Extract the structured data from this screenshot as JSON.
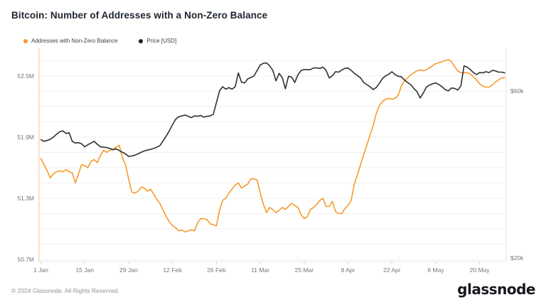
{
  "page": {
    "title": "Bitcoin: Number of Addresses with a Non-Zero Balance",
    "footer_copyright": "© 2024 Glassnode. All Rights Reserved.",
    "brand_wordmark": "glassnode"
  },
  "legend": {
    "items": [
      {
        "label": "Addresses with Non-Zero Balance",
        "color": "#f79a2b"
      },
      {
        "label": "Price [USD]",
        "color": "#1f1f1f"
      }
    ]
  },
  "colors": {
    "addresses_line": "#f79a2b",
    "price_line": "#2f2f2f",
    "gridline": "#f0f0f1",
    "axis_line": "#e3e4e6",
    "left_axis_line": "#f7dcb8",
    "tick_mark": "#d6d8da"
  },
  "chart_data": {
    "type": "line",
    "title": "Bitcoin: Number of Addresses with a Non-Zero Balance",
    "grid": true,
    "legend_position": "top-left",
    "x_axis": {
      "unit": "date (daily, 2024)",
      "domain_days": [
        0,
        148
      ],
      "tick_days": [
        0,
        14,
        28,
        42,
        56,
        70,
        84,
        98,
        112,
        126,
        140
      ],
      "tick_labels": [
        "1 Jan",
        "15 Jan",
        "29 Jan",
        "12 Feb",
        "26 Feb",
        "11 Mar",
        "25 Mar",
        "8 Apr",
        "22 Apr",
        "6 May",
        "20 May"
      ]
    },
    "y_left": {
      "unit": "addresses (millions)",
      "range": [
        50.68,
        52.77
      ],
      "ticks": [
        {
          "label": "52.5M",
          "value": 52.5
        },
        {
          "label": "51.9M",
          "value": 51.9
        },
        {
          "label": "51.3M",
          "value": 51.3
        },
        {
          "label": "50.7M",
          "value": 50.7
        }
      ],
      "gridlines": {
        "start": 50.7,
        "end": 52.65,
        "step": 0.15
      }
    },
    "y_right": {
      "unit": "price (thousand USD)",
      "range": [
        19.1,
        70.2
      ],
      "ticks": [
        {
          "label": "$60k",
          "value": 60
        },
        {
          "label": "$20k",
          "value": 20
        }
      ]
    },
    "series": [
      {
        "name": "Addresses with Non-Zero Balance",
        "axis": "left",
        "color": "#f79a2b",
        "unit": "M",
        "values": [
          51.69,
          51.63,
          51.57,
          51.5,
          51.54,
          51.56,
          51.57,
          51.56,
          51.58,
          51.56,
          51.55,
          51.45,
          51.54,
          51.63,
          51.62,
          51.6,
          51.66,
          51.68,
          51.65,
          51.72,
          51.77,
          51.75,
          51.77,
          51.78,
          51.8,
          51.82,
          51.7,
          51.63,
          51.49,
          51.36,
          51.35,
          51.37,
          51.41,
          51.4,
          51.37,
          51.39,
          51.34,
          51.29,
          51.25,
          51.18,
          51.12,
          51.07,
          51.03,
          51.01,
          50.98,
          50.99,
          50.97,
          50.98,
          50.99,
          50.98,
          51.06,
          51.1,
          51.1,
          51.09,
          51.05,
          51.04,
          51.03,
          51.18,
          51.28,
          51.3,
          51.35,
          51.39,
          51.43,
          51.45,
          51.4,
          51.42,
          51.44,
          51.49,
          51.49,
          51.48,
          51.35,
          51.24,
          51.16,
          51.21,
          51.19,
          51.16,
          51.18,
          51.21,
          51.19,
          51.22,
          51.25,
          51.23,
          51.21,
          51.14,
          51.1,
          51.12,
          51.19,
          51.21,
          51.24,
          51.28,
          51.3,
          51.22,
          51.22,
          51.27,
          51.17,
          51.15,
          51.15,
          51.2,
          51.23,
          51.28,
          51.44,
          51.53,
          51.63,
          51.73,
          51.82,
          51.92,
          52.01,
          52.13,
          52.21,
          52.25,
          52.27,
          52.28,
          52.27,
          52.28,
          52.31,
          52.4,
          52.45,
          52.48,
          52.51,
          52.53,
          52.55,
          52.56,
          52.55,
          52.56,
          52.58,
          52.6,
          52.62,
          52.63,
          52.64,
          52.65,
          52.66,
          52.64,
          52.59,
          52.55,
          52.53,
          52.53,
          52.53,
          52.52,
          52.49,
          52.46,
          52.42,
          52.4,
          52.39,
          52.39,
          52.41,
          52.44,
          52.46,
          52.48,
          52.48
        ]
      },
      {
        "name": "Price [USD]",
        "axis": "right",
        "color": "#2f2f2f",
        "unit": "k USD",
        "values": [
          48.3,
          47.9,
          48.1,
          48.4,
          48.9,
          49.6,
          50.2,
          50.4,
          49.8,
          50.0,
          47.9,
          47.5,
          47.6,
          47.3,
          46.6,
          47.1,
          47.5,
          47.9,
          47.2,
          46.6,
          46.5,
          46.4,
          46.2,
          45.9,
          46.1,
          45.7,
          45.3,
          44.9,
          44.3,
          44.4,
          44.6,
          44.9,
          45.3,
          45.6,
          45.8,
          46.0,
          46.2,
          46.5,
          46.9,
          48.0,
          49.2,
          50.5,
          51.9,
          53.2,
          53.8,
          54.0,
          54.2,
          53.9,
          53.6,
          54.0,
          53.9,
          54.1,
          53.7,
          53.9,
          54.0,
          54.4,
          57.2,
          60.0,
          61.0,
          60.4,
          60.8,
          60.4,
          61.0,
          64.3,
          62.1,
          61.9,
          62.9,
          63.2,
          63.6,
          64.9,
          66.2,
          66.6,
          66.7,
          66.0,
          64.9,
          62.4,
          64.2,
          63.2,
          60.5,
          63.5,
          63.3,
          62.0,
          63.8,
          64.9,
          65.1,
          65.1,
          65.1,
          65.5,
          65.5,
          65.4,
          65.7,
          64.9,
          63.1,
          63.6,
          64.6,
          64.5,
          65.0,
          65.4,
          65.5,
          64.9,
          64.2,
          63.7,
          63.1,
          62.0,
          61.5,
          61.0,
          60.3,
          60.8,
          61.8,
          63.0,
          63.6,
          64.0,
          64.6,
          63.9,
          63.5,
          63.4,
          62.6,
          62.0,
          61.5,
          60.6,
          59.8,
          58.3,
          59.5,
          60.9,
          61.4,
          61.7,
          61.9,
          61.5,
          61.0,
          60.3,
          60.0,
          60.7,
          60.6,
          60.2,
          61.2,
          66.0,
          65.7,
          65.1,
          64.4,
          63.9,
          64.4,
          64.3,
          64.6,
          64.4,
          64.9,
          64.8,
          64.5,
          64.5,
          64.3
        ]
      }
    ]
  }
}
